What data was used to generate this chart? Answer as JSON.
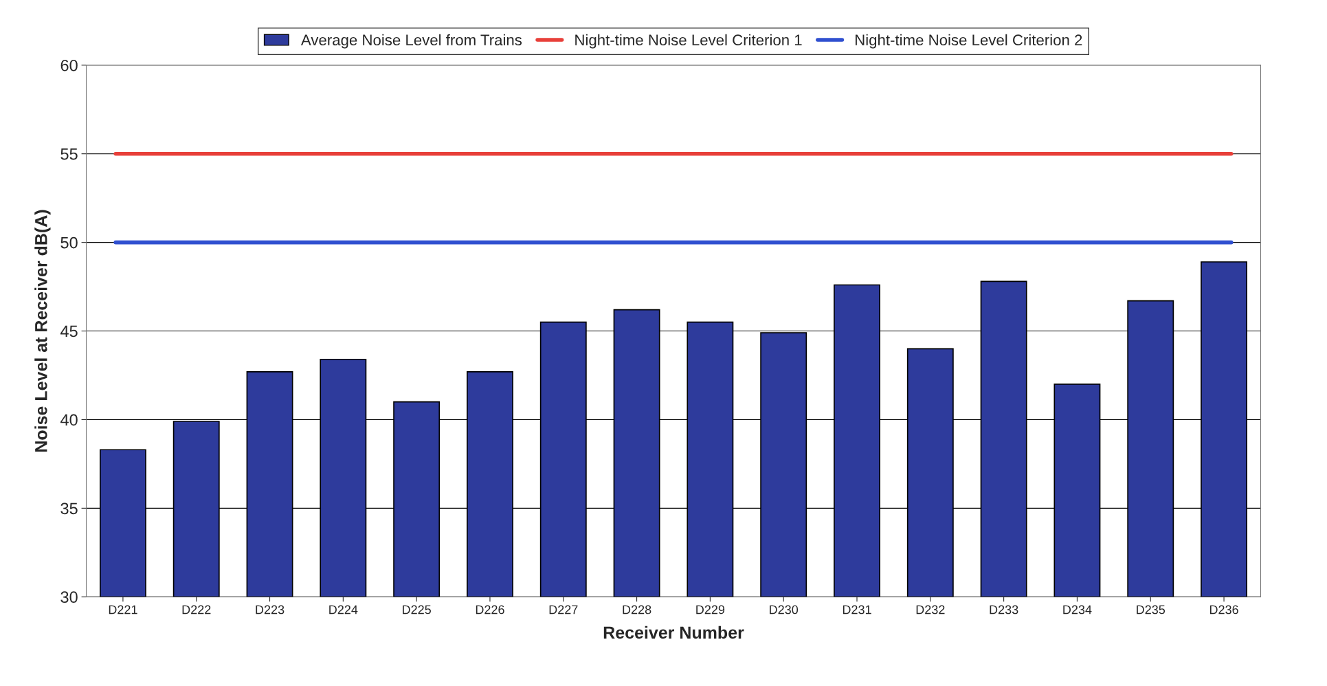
{
  "chart_data": {
    "type": "bar",
    "xlabel": "Receiver Number",
    "ylabel": "Noise Level at Receiver dB(A)",
    "categories": [
      "D221",
      "D222",
      "D223",
      "D224",
      "D225",
      "D226",
      "D227",
      "D228",
      "D229",
      "D230",
      "D231",
      "D232",
      "D233",
      "D234",
      "D235",
      "D236"
    ],
    "series": [
      {
        "name": "Average Noise Level from Trains",
        "color": "#2e3b9c",
        "values": [
          38.3,
          39.9,
          42.7,
          43.4,
          41.0,
          42.7,
          45.5,
          46.2,
          45.5,
          44.9,
          47.6,
          44.0,
          47.8,
          42.0,
          46.7,
          48.9
        ]
      }
    ],
    "ref_lines": [
      {
        "axis": "y",
        "value": 55,
        "label": "Night-time Noise Level Criterion 1",
        "color": "#e8403a"
      },
      {
        "axis": "y",
        "value": 50,
        "label": "Night-time Noise Level Criterion 2",
        "color": "#3050d0"
      }
    ],
    "ylim": [
      30,
      60
    ],
    "yticks": [
      30,
      35,
      40,
      45,
      50,
      55,
      60
    ],
    "grid": "y",
    "legend": "top"
  }
}
